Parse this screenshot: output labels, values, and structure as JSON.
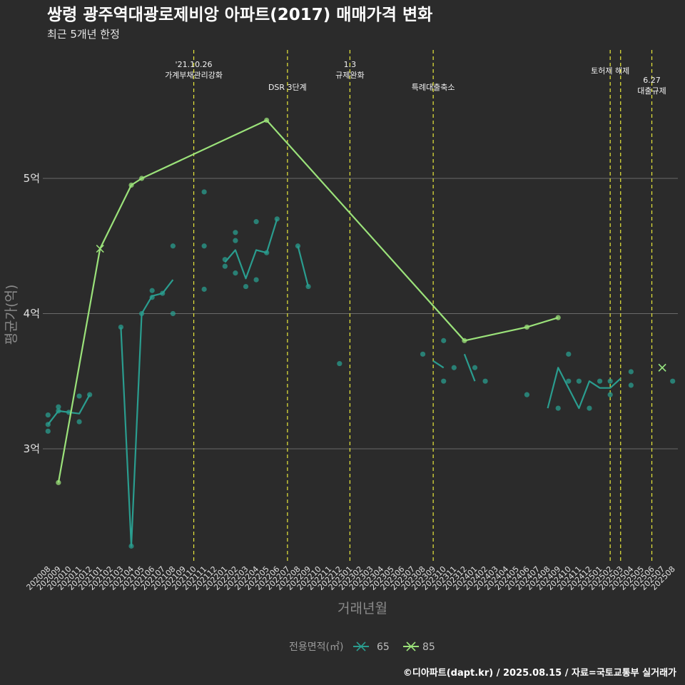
{
  "header": {
    "title": "쌍령 광주역대광로제비앙 아파트(2017) 매매가격 변화",
    "subtitle": "최근 5개년 한정"
  },
  "caption": "©디아파트(dapt.kr) / 2025.08.15 / 자료=국토교통부 실거래가",
  "legend": {
    "title": "전용면적(㎡)",
    "items": [
      {
        "label": "65",
        "color": "#2a9d8f"
      },
      {
        "label": "85",
        "color": "#9be27a"
      }
    ]
  },
  "chart_data": {
    "type": "line",
    "xlabel": "거래년월",
    "ylabel": "평균가(억)",
    "ylim": [
      2.15,
      5.95
    ],
    "yticks": [
      3,
      4,
      5
    ],
    "ytick_labels": [
      "3억",
      "4억",
      "5억"
    ],
    "categories": [
      "202008",
      "202009",
      "202010",
      "202011",
      "202012",
      "202101",
      "202102",
      "202103",
      "202104",
      "202105",
      "202106",
      "202107",
      "202108",
      "202109",
      "202110",
      "202111",
      "202112",
      "202201",
      "202202",
      "202203",
      "202204",
      "202205",
      "202206",
      "202207",
      "202208",
      "202209",
      "202210",
      "202211",
      "202212",
      "202301",
      "202302",
      "202303",
      "202304",
      "202305",
      "202306",
      "202307",
      "202308",
      "202309",
      "202310",
      "202311",
      "202312",
      "202401",
      "202402",
      "202403",
      "202404",
      "202405",
      "202406",
      "202407",
      "202408",
      "202409",
      "202410",
      "202411",
      "202412",
      "202501",
      "202502",
      "202503",
      "202504",
      "202505",
      "202506",
      "202507",
      "202508"
    ],
    "events": [
      {
        "x": "202110",
        "label": [
          "'21.10.26",
          "가계부채관리강화"
        ]
      },
      {
        "x": "202207",
        "label": [
          "DSR 3단계"
        ]
      },
      {
        "x": "202301",
        "label": [
          "1.3",
          "규제완화"
        ]
      },
      {
        "x": "202309",
        "label": [
          "특례대출축소"
        ]
      },
      {
        "x": "202502",
        "label": [
          "토허제 해제"
        ]
      },
      {
        "x": "202503",
        "label": []
      },
      {
        "x": "202506",
        "label": [
          "6.27",
          "대출규제"
        ]
      }
    ],
    "series": [
      {
        "name": "65",
        "color": "#2a9d8f",
        "line": [
          [
            [
              "202008",
              3.18
            ],
            [
              "202009",
              3.28
            ],
            [
              "202010",
              3.27
            ],
            [
              "202011",
              3.26
            ],
            [
              "202012",
              3.4
            ]
          ],
          [
            [
              "202103",
              3.9
            ],
            [
              "202104",
              2.28
            ],
            [
              "202105",
              4.0
            ],
            [
              "202106",
              4.13
            ],
            [
              "202107",
              4.15
            ],
            [
              "202108",
              4.25
            ]
          ],
          [
            [
              "202201",
              4.38
            ],
            [
              "202202",
              4.47
            ],
            [
              "202203",
              4.26
            ],
            [
              "202204",
              4.47
            ],
            [
              "202205",
              4.45
            ],
            [
              "202206",
              4.7
            ]
          ],
          [
            [
              "202208",
              4.5
            ],
            [
              "202209",
              4.2
            ]
          ],
          [
            [
              "202309",
              3.65
            ],
            [
              "202310",
              3.6
            ]
          ],
          [
            [
              "202312",
              3.7
            ],
            [
              "202401",
              3.5
            ]
          ],
          [
            [
              "202408",
              3.3
            ],
            [
              "202409",
              3.6
            ],
            [
              "202410",
              3.45
            ],
            [
              "202411",
              3.3
            ],
            [
              "202412",
              3.5
            ],
            [
              "202501",
              3.45
            ],
            [
              "202502",
              3.45
            ],
            [
              "202503",
              3.52
            ]
          ]
        ],
        "points": [
          [
            "202008",
            3.18
          ],
          [
            "202008",
            3.25
          ],
          [
            "202008",
            3.13
          ],
          [
            "202009",
            3.31
          ],
          [
            "202009",
            3.28
          ],
          [
            "202010",
            3.27
          ],
          [
            "202011",
            3.39
          ],
          [
            "202011",
            3.2
          ],
          [
            "202012",
            3.4
          ],
          [
            "202103",
            3.9
          ],
          [
            "202104",
            2.28
          ],
          [
            "202105",
            4.0
          ],
          [
            "202106",
            4.12
          ],
          [
            "202106",
            4.17
          ],
          [
            "202107",
            4.15
          ],
          [
            "202108",
            4.5
          ],
          [
            "202108",
            4.0
          ],
          [
            "202111",
            4.9
          ],
          [
            "202111",
            4.5
          ],
          [
            "202111",
            4.18
          ],
          [
            "202201",
            4.35
          ],
          [
            "202201",
            4.4
          ],
          [
            "202202",
            4.6
          ],
          [
            "202202",
            4.54
          ],
          [
            "202202",
            4.3
          ],
          [
            "202203",
            4.2
          ],
          [
            "202204",
            4.68
          ],
          [
            "202204",
            4.25
          ],
          [
            "202205",
            4.45
          ],
          [
            "202206",
            4.7
          ],
          [
            "202208",
            4.5
          ],
          [
            "202209",
            4.2
          ],
          [
            "202212",
            3.63
          ],
          [
            "202308",
            3.7
          ],
          [
            "202310",
            3.8
          ],
          [
            "202310",
            3.5
          ],
          [
            "202311",
            3.6
          ],
          [
            "202401",
            3.6
          ],
          [
            "202402",
            3.5
          ],
          [
            "202406",
            3.4
          ],
          [
            "202409",
            3.3
          ],
          [
            "202410",
            3.7
          ],
          [
            "202410",
            3.5
          ],
          [
            "202411",
            3.5
          ],
          [
            "202412",
            3.3
          ],
          [
            "202501",
            3.5
          ],
          [
            "202502",
            3.4
          ],
          [
            "202502",
            3.5
          ],
          [
            "202504",
            3.57
          ],
          [
            "202504",
            3.47
          ],
          [
            "202508",
            3.5
          ]
        ],
        "markers_x": [
          [
            "202507",
            3.6
          ]
        ]
      },
      {
        "name": "85",
        "color": "#9be27a",
        "line": [
          [
            [
              "202009",
              2.75
            ],
            [
              "202101",
              4.48
            ],
            [
              "202104",
              4.95
            ],
            [
              "202105",
              5.0
            ],
            [
              "202205",
              5.43
            ],
            [
              "202312",
              3.8
            ],
            [
              "202406",
              3.9
            ],
            [
              "202409",
              3.97
            ]
          ]
        ],
        "points": [
          [
            "202009",
            2.75
          ],
          [
            "202104",
            4.95
          ],
          [
            "202105",
            5.0
          ],
          [
            "202205",
            5.43
          ],
          [
            "202312",
            3.8
          ],
          [
            "202406",
            3.9
          ],
          [
            "202409",
            3.97
          ]
        ],
        "markers_x": [
          [
            "202101",
            4.48
          ],
          [
            "202507",
            3.6
          ]
        ]
      }
    ]
  }
}
